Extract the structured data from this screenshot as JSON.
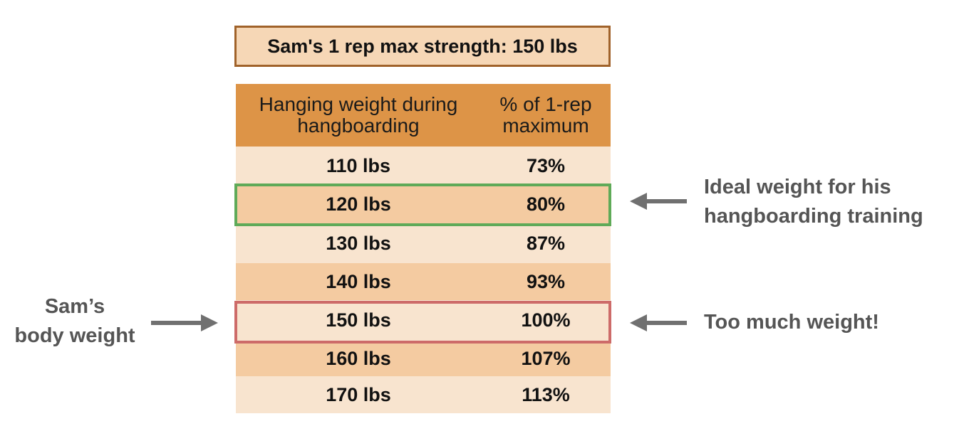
{
  "title": "Sam's 1 rep max strength: 150 lbs",
  "table": {
    "headers": {
      "col1_line1": "Hanging weight during",
      "col1_line2": "hangboarding",
      "col2_line1": "% of 1-rep",
      "col2_line2": "maximum"
    },
    "rows": [
      {
        "weight": "110 lbs",
        "percent": "73%"
      },
      {
        "weight": "120 lbs",
        "percent": "80%"
      },
      {
        "weight": "130 lbs",
        "percent": "87%"
      },
      {
        "weight": "140 lbs",
        "percent": "93%"
      },
      {
        "weight": "150 lbs",
        "percent": "100%"
      },
      {
        "weight": "160 lbs",
        "percent": "107%"
      },
      {
        "weight": "170 lbs",
        "percent": "113%"
      }
    ]
  },
  "annotations": {
    "ideal_line1": "Ideal weight for his",
    "ideal_line2": "hangboarding training",
    "too_much": "Too much weight!",
    "body_line1": "Sam’s",
    "body_line2": "body weight"
  },
  "colors": {
    "header_bg": "#dd9447",
    "row_light": "#f8e4cf",
    "row_dark": "#f4cba1",
    "ideal_outline": "#5faa58",
    "too_much_outline": "#cd6b69",
    "arrow": "#707070",
    "annotation_text": "#555555"
  },
  "icons": {
    "arrow_left": "left-arrow-icon",
    "arrow_right": "right-arrow-icon"
  }
}
